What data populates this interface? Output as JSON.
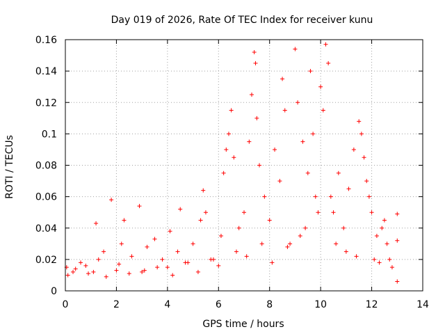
{
  "chart_data": {
    "type": "scatter",
    "title": "Day 019 of 2026, Rate Of TEC Index for receiver kunu",
    "xlabel": "GPS time / hours",
    "ylabel": "ROTI / TECUs",
    "xlim": [
      0,
      14
    ],
    "ylim": [
      0,
      0.16
    ],
    "x_ticks": [
      0,
      2,
      4,
      6,
      8,
      10,
      12,
      14
    ],
    "x_tick_labels": [
      "0",
      "2",
      "4",
      "6",
      "8",
      "10",
      "12",
      "14"
    ],
    "y_ticks": [
      0,
      0.02,
      0.04,
      0.06,
      0.08,
      0.1,
      0.12,
      0.14,
      0.16
    ],
    "y_tick_labels": [
      "0",
      "0.02",
      "0.04",
      "0.06",
      "0.08",
      "0.1",
      "0.12",
      "0.14",
      "0.16"
    ],
    "grid": true,
    "marker": "plus",
    "color": "#ff0000",
    "series": [
      {
        "name": "ROTI",
        "x": [
          0.05,
          0.3,
          0.6,
          0.9,
          1.2,
          1.3,
          1.5,
          1.8,
          2.0,
          2.2,
          2.3,
          2.6,
          2.9,
          3.0,
          3.2,
          3.5,
          3.8,
          4.0,
          4.1,
          4.4,
          4.5,
          4.7,
          5.0,
          5.3,
          5.4,
          5.5,
          5.8,
          6.1,
          6.2,
          6.3,
          6.4,
          6.5,
          6.6,
          6.8,
          7.0,
          7.2,
          7.3,
          7.4,
          7.45,
          7.5,
          7.6,
          7.8,
          8.0,
          8.2,
          8.4,
          8.5,
          8.6,
          8.8,
          9.0,
          9.1,
          9.3,
          9.5,
          9.6,
          9.7,
          9.8,
          9.9,
          10.0,
          10.1,
          10.2,
          10.3,
          10.4,
          10.5,
          10.7,
          10.9,
          11.1,
          11.3,
          11.5,
          11.6,
          11.7,
          11.8,
          11.9,
          12.0,
          12.2,
          12.4,
          12.5,
          12.6,
          12.7,
          13.0,
          13.0,
          13.0,
          0.1,
          0.4,
          0.8,
          1.1,
          1.6,
          2.1,
          2.5,
          3.1,
          3.6,
          4.2,
          4.8,
          5.2,
          5.7,
          6.0,
          6.7,
          7.1,
          7.7,
          8.1,
          8.7,
          9.2,
          9.4,
          10.6,
          11.0,
          11.4,
          12.1,
          12.3,
          12.8
        ],
        "y": [
          0.015,
          0.012,
          0.018,
          0.011,
          0.043,
          0.02,
          0.025,
          0.058,
          0.013,
          0.03,
          0.045,
          0.022,
          0.054,
          0.012,
          0.028,
          0.033,
          0.02,
          0.015,
          0.038,
          0.025,
          0.052,
          0.018,
          0.03,
          0.045,
          0.064,
          0.05,
          0.02,
          0.035,
          0.075,
          0.09,
          0.1,
          0.115,
          0.085,
          0.04,
          0.05,
          0.095,
          0.125,
          0.152,
          0.145,
          0.11,
          0.08,
          0.06,
          0.045,
          0.09,
          0.07,
          0.135,
          0.115,
          0.03,
          0.154,
          0.12,
          0.095,
          0.075,
          0.14,
          0.1,
          0.06,
          0.05,
          0.13,
          0.115,
          0.157,
          0.145,
          0.06,
          0.05,
          0.075,
          0.04,
          0.065,
          0.09,
          0.108,
          0.1,
          0.085,
          0.07,
          0.06,
          0.05,
          0.035,
          0.04,
          0.045,
          0.03,
          0.02,
          0.049,
          0.032,
          0.006,
          0.01,
          0.014,
          0.016,
          0.012,
          0.009,
          0.017,
          0.011,
          0.013,
          0.015,
          0.01,
          0.018,
          0.012,
          0.02,
          0.016,
          0.025,
          0.022,
          0.03,
          0.018,
          0.028,
          0.035,
          0.04,
          0.03,
          0.025,
          0.022,
          0.02,
          0.018,
          0.015
        ]
      }
    ]
  }
}
